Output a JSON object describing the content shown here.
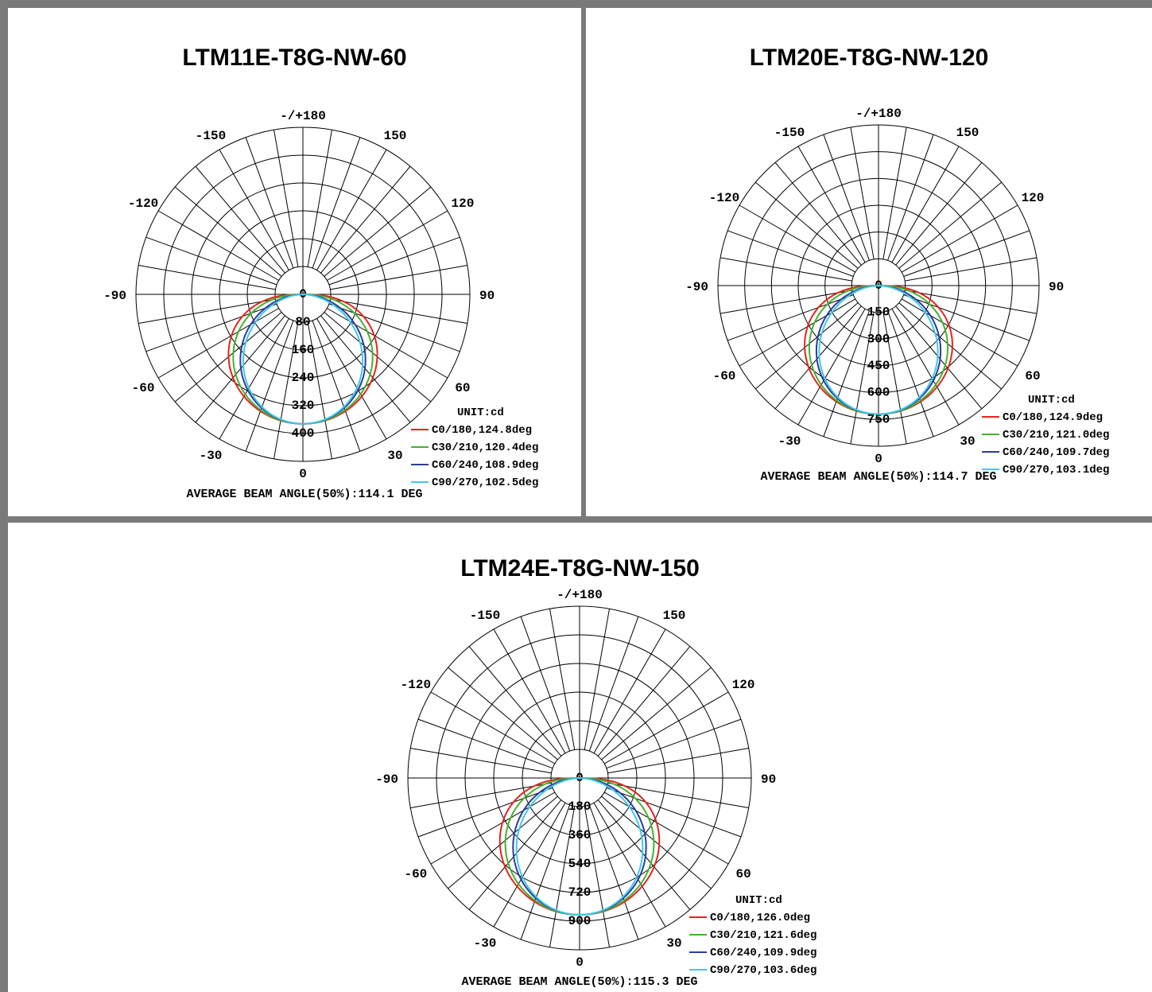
{
  "colors": {
    "series": [
      "#e0261f",
      "#49b030",
      "#2b3d9c",
      "#41c9e8"
    ],
    "border": "#7a7a7a"
  },
  "chart_data": [
    {
      "type": "polar",
      "title": "LTM11E-T8G-NW-60",
      "angle_labels": [
        "-/+180",
        "150",
        "120",
        "90",
        "60",
        "30",
        "0",
        "-30",
        "-60",
        "-90",
        "-120",
        "-150"
      ],
      "radial_ticks": [
        "0",
        "80",
        "160",
        "240",
        "320",
        "400"
      ],
      "rmax": 400,
      "unit_label": "UNIT:cd",
      "series": [
        {
          "name": "C0/180,124.8deg",
          "peak": 372,
          "exponent": 0.65
        },
        {
          "name": "C30/210,120.4deg",
          "peak": 372,
          "exponent": 0.8
        },
        {
          "name": "C60/240,108.9deg",
          "peak": 372,
          "exponent": 1.1
        },
        {
          "name": "C90/270,102.5deg",
          "peak": 372,
          "exponent": 1.25
        }
      ],
      "avg_label": "AVERAGE BEAM ANGLE(50%):114.1 DEG"
    },
    {
      "type": "polar",
      "title": "LTM20E-T8G-NW-120",
      "angle_labels": [
        "-/+180",
        "150",
        "120",
        "90",
        "60",
        "30",
        "0",
        "-30",
        "-60",
        "-90",
        "-120",
        "-150"
      ],
      "radial_ticks": [
        "0",
        "150",
        "300",
        "450",
        "600",
        "750"
      ],
      "rmax": 750,
      "unit_label": "UNIT:cd",
      "series": [
        {
          "name": "C0/180,124.9deg",
          "peak": 720,
          "exponent": 0.65
        },
        {
          "name": "C30/210,121.0deg",
          "peak": 720,
          "exponent": 0.8
        },
        {
          "name": "C60/240,109.7deg",
          "peak": 720,
          "exponent": 1.1
        },
        {
          "name": "C90/270,103.1deg",
          "peak": 720,
          "exponent": 1.25
        }
      ],
      "avg_label": "AVERAGE BEAM ANGLE(50%):114.7 DEG"
    },
    {
      "type": "polar",
      "title": "LTM24E-T8G-NW-150",
      "angle_labels": [
        "-/+180",
        "150",
        "120",
        "90",
        "60",
        "30",
        "0",
        "-30",
        "-60",
        "-90",
        "-120",
        "-150"
      ],
      "radial_ticks": [
        "0",
        "180",
        "360",
        "540",
        "720",
        "900"
      ],
      "rmax": 900,
      "unit_label": "UNIT:cd",
      "series": [
        {
          "name": "C0/180,126.0deg",
          "peak": 860,
          "exponent": 0.62
        },
        {
          "name": "C30/210,121.6deg",
          "peak": 860,
          "exponent": 0.78
        },
        {
          "name": "C60/240,109.9deg",
          "peak": 860,
          "exponent": 1.08
        },
        {
          "name": "C90/270,103.6deg",
          "peak": 860,
          "exponent": 1.25
        }
      ],
      "avg_label": "AVERAGE BEAM ANGLE(50%):115.3 DEG"
    }
  ]
}
